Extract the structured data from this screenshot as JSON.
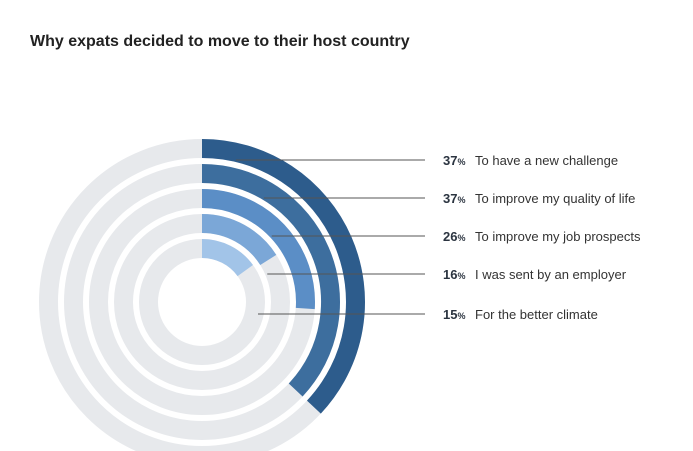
{
  "title": "Why expats decided to move to their host country",
  "chart_data": {
    "type": "radial-bar",
    "title": "Why expats decided to move to their host country",
    "max": 100,
    "unit": "%",
    "series": [
      {
        "label": "To have a new challenge",
        "value": 37,
        "color": "#2d5c8c"
      },
      {
        "label": "To improve my quality of life",
        "value": 37,
        "color": "#3d6e9e"
      },
      {
        "label": "To improve my job prospects",
        "value": 26,
        "color": "#5b8ec6"
      },
      {
        "label": "I was sent by an employer",
        "value": 16,
        "color": "#7ba7d7"
      },
      {
        "label": "For the better climate",
        "value": 15,
        "color": "#a2c4e8"
      }
    ],
    "track_color": "#e7e9ec",
    "leader_color": "#555555"
  }
}
